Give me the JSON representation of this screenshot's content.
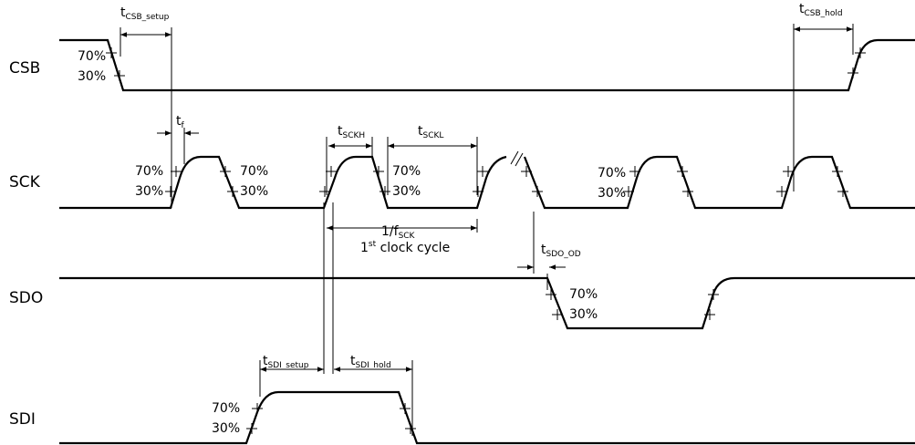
{
  "signals": [
    "CSB",
    "SCK",
    "SDO",
    "SDI"
  ],
  "timings": [
    {
      "base": "t",
      "sub": "CSB_setup"
    },
    {
      "base": "t",
      "sub": "f"
    },
    {
      "base": "t",
      "sub": "SCKH"
    },
    {
      "base": "t",
      "sub": "SCKL"
    },
    {
      "base": "1/f",
      "sub": "SCK"
    },
    {
      "base": "t",
      "sub": "SDO_OD"
    },
    {
      "base": "t",
      "sub": "SDI_setup"
    },
    {
      "base": "t",
      "sub": "SDI_hold"
    },
    {
      "base": "t",
      "sub": "CSB_hold"
    }
  ],
  "clock_cycle": {
    "num": "1",
    "sup": "st",
    "rest": " clock cycle"
  },
  "levels": [
    "70%",
    "30%",
    "70%",
    "30%",
    "70%",
    "30%",
    "70%",
    "30%",
    "70%",
    "30%",
    "70%",
    "30%",
    "70%",
    "30%"
  ]
}
